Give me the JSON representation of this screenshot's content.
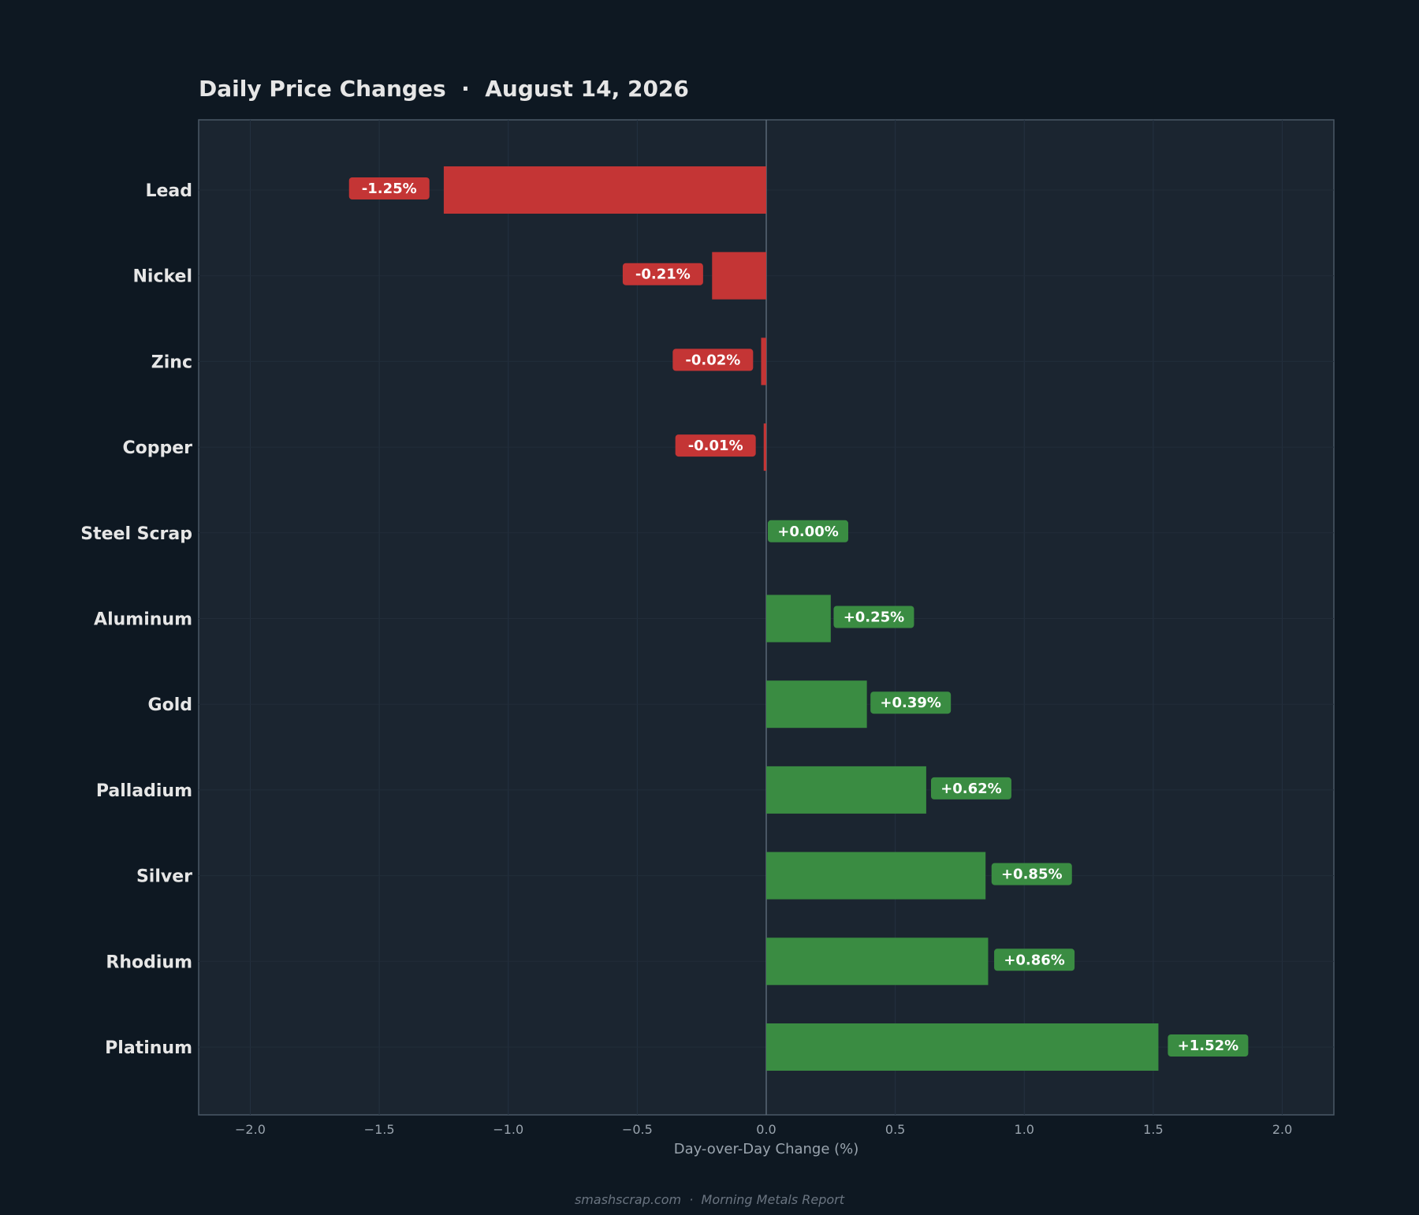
{
  "chart_data": {
    "type": "bar",
    "orientation": "horizontal",
    "title": "Daily Price Changes  ·  August 14, 2026",
    "xlabel": "Day-over-Day Change (%)",
    "ylabel": "",
    "xlim": [
      -2.2,
      2.2
    ],
    "xticks": [
      -2.0,
      -1.5,
      -1.0,
      -0.5,
      0.0,
      0.5,
      1.0,
      1.5,
      2.0
    ],
    "xtick_labels": [
      "−2.0",
      "−1.5",
      "−1.0",
      "−0.5",
      "0.0",
      "0.5",
      "1.0",
      "1.5",
      "2.0"
    ],
    "grid": true,
    "categories": [
      "Lead",
      "Nickel",
      "Zinc",
      "Copper",
      "Steel Scrap",
      "Aluminum",
      "Gold",
      "Palladium",
      "Silver",
      "Rhodium",
      "Platinum"
    ],
    "values": [
      -1.25,
      -0.21,
      -0.02,
      -0.01,
      0.0,
      0.25,
      0.39,
      0.62,
      0.85,
      0.86,
      1.52
    ],
    "data_labels": [
      "-1.25%",
      "-0.21%",
      "-0.02%",
      "-0.01%",
      "+0.00%",
      "+0.25%",
      "+0.39%",
      "+0.62%",
      "+0.85%",
      "+0.86%",
      "+1.52%"
    ],
    "footer": "smashscrap.com  ·  Morning Metals Report",
    "colors": {
      "page_background": "#0e1822",
      "plot_background": "#1b2530",
      "negative": "#c43535",
      "positive": "#3a8c42",
      "text": "#e6e6e6",
      "tick_text": "#9aa4ae",
      "axis_line": "#4a5866",
      "footer_text": "#6a7480"
    }
  }
}
